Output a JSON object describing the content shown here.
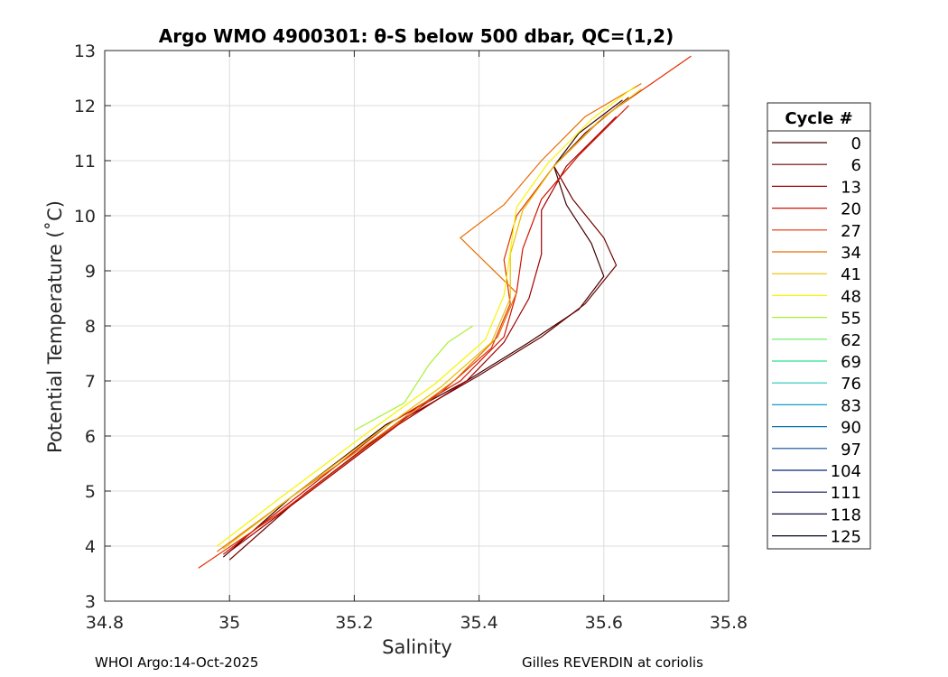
{
  "chart_data": {
    "type": "line",
    "title": "Argo WMO 4900301: θ-S below 500 dbar,  QC=(1,2)",
    "xlabel": "Salinity",
    "ylabel": "Potential Temperature (˚C)",
    "xlim": [
      34.8,
      35.8
    ],
    "ylim": [
      3,
      13
    ],
    "xticks": [
      34.8,
      35,
      35.2,
      35.4,
      35.6,
      35.8
    ],
    "xtick_labels": [
      "34.8",
      "35",
      "35.2",
      "35.4",
      "35.6",
      "35.8"
    ],
    "yticks": [
      3,
      4,
      5,
      6,
      7,
      8,
      9,
      10,
      11,
      12,
      13
    ],
    "ytick_labels": [
      "3",
      "4",
      "5",
      "6",
      "7",
      "8",
      "9",
      "10",
      "11",
      "12",
      "13"
    ],
    "grid": true,
    "legend": {
      "title": "Cycle #",
      "placement": "right",
      "entries": [
        {
          "label": "0",
          "color": "#3d0000"
        },
        {
          "label": "6",
          "color": "#6e0000"
        },
        {
          "label": "13",
          "color": "#a00000"
        },
        {
          "label": "20",
          "color": "#d21200"
        },
        {
          "label": "27",
          "color": "#e03000"
        },
        {
          "label": "34",
          "color": "#e86d00"
        },
        {
          "label": "41",
          "color": "#e8bf00"
        },
        {
          "label": "48",
          "color": "#f5f500"
        },
        {
          "label": "55",
          "color": "#a8f030"
        },
        {
          "label": "62",
          "color": "#60e860"
        },
        {
          "label": "69",
          "color": "#30e090"
        },
        {
          "label": "76",
          "color": "#20c8b8"
        },
        {
          "label": "83",
          "color": "#10a0c8"
        },
        {
          "label": "90",
          "color": "#0a78b0"
        },
        {
          "label": "97",
          "color": "#084c98"
        },
        {
          "label": "104",
          "color": "#0a2878"
        },
        {
          "label": "111",
          "color": "#0a1858"
        },
        {
          "label": "118",
          "color": "#0a0c3a"
        },
        {
          "label": "125",
          "color": "#060620"
        }
      ]
    },
    "series": [
      {
        "name": "0",
        "color": "#3d0000",
        "s": [
          34.99,
          35.1,
          35.25,
          35.38,
          35.48,
          35.56,
          35.6,
          35.58,
          35.54,
          35.52,
          35.56,
          35.63
        ],
        "t": [
          3.8,
          4.9,
          6.2,
          7.0,
          7.7,
          8.3,
          8.9,
          9.5,
          10.2,
          10.9,
          11.5,
          12.1
        ]
      },
      {
        "name": "6",
        "color": "#6e0000",
        "s": [
          35.0,
          35.12,
          35.27,
          35.4,
          35.5,
          35.57,
          35.62,
          35.6,
          35.55,
          35.52,
          35.57,
          35.64
        ],
        "t": [
          3.75,
          4.95,
          6.25,
          7.1,
          7.8,
          8.4,
          9.1,
          9.6,
          10.3,
          10.9,
          11.5,
          12.15
        ]
      },
      {
        "name": "13",
        "color": "#a00000",
        "s": [
          35.0,
          35.13,
          35.27,
          35.38,
          35.44,
          35.48,
          35.5,
          35.5,
          35.54,
          35.62
        ],
        "t": [
          3.9,
          5.0,
          6.2,
          7.0,
          7.7,
          8.5,
          9.3,
          10.1,
          10.9,
          11.8
        ]
      },
      {
        "name": "20",
        "color": "#d21200",
        "s": [
          34.99,
          35.12,
          35.26,
          35.37,
          35.44,
          35.46,
          35.47,
          35.5,
          35.56,
          35.64
        ],
        "t": [
          3.85,
          5.0,
          6.25,
          7.0,
          7.8,
          8.6,
          9.4,
          10.3,
          11.1,
          12.0
        ]
      },
      {
        "name": "27",
        "color": "#e03000",
        "s": [
          34.95,
          35.08,
          35.22,
          35.34,
          35.42,
          35.45,
          35.44,
          35.46,
          35.52,
          35.6,
          35.74
        ],
        "t": [
          3.6,
          4.6,
          5.8,
          6.8,
          7.6,
          8.4,
          9.2,
          10.0,
          10.9,
          11.8,
          12.9
        ]
      },
      {
        "name": "34",
        "color": "#e86d00",
        "s": [
          34.98,
          35.1,
          35.24,
          35.36,
          35.43,
          35.46,
          35.37,
          35.44,
          35.5,
          35.57,
          35.66
        ],
        "t": [
          3.9,
          4.9,
          6.0,
          7.0,
          7.8,
          8.6,
          9.6,
          10.2,
          11.0,
          11.8,
          12.4
        ]
      },
      {
        "name": "41",
        "color": "#e8bf00",
        "s": [
          34.99,
          35.1,
          35.23,
          35.34,
          35.42,
          35.45,
          35.45,
          35.47,
          35.52,
          35.59,
          35.66
        ],
        "t": [
          3.95,
          4.9,
          6.0,
          6.9,
          7.7,
          8.5,
          9.3,
          10.1,
          10.9,
          11.7,
          12.3
        ]
      },
      {
        "name": "48",
        "color": "#f5f500",
        "s": [
          34.98,
          35.09,
          35.22,
          35.33,
          35.41,
          35.44,
          35.45,
          35.46,
          35.51,
          35.58,
          35.65
        ],
        "t": [
          4.0,
          4.95,
          6.05,
          6.95,
          7.75,
          8.55,
          9.35,
          10.15,
          10.95,
          11.75,
          12.35
        ]
      },
      {
        "name": "55",
        "color": "#a8f030",
        "s": [
          35.2,
          35.28,
          35.32,
          35.35,
          35.39
        ],
        "t": [
          6.1,
          6.6,
          7.3,
          7.7,
          8.0
        ]
      }
    ]
  },
  "footer": {
    "left": "WHOI Argo:14-Oct-2025",
    "right": "Gilles REVERDIN at coriolis"
  }
}
